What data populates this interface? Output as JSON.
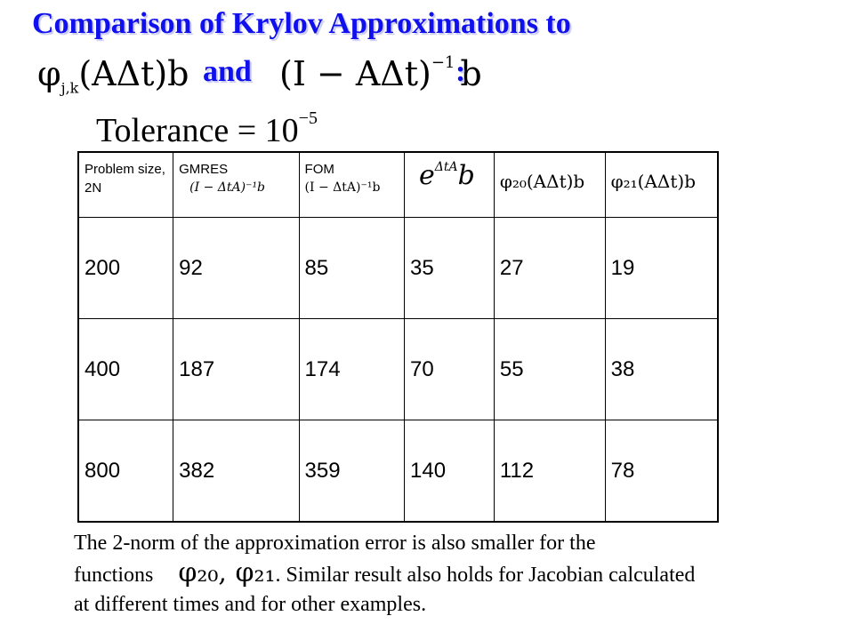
{
  "title": {
    "line1": "Comparison of Krylov Approximations to",
    "line2_phi": "φ",
    "line2_phi_sub": "j,k",
    "line2_phi_arg": "(AΔt)b",
    "line2_and": "and",
    "line2_inv": "(I − AΔt)",
    "line2_inv_sup": "−1",
    "line2_inv_b": "b",
    "line2_colon": ":"
  },
  "tolerance": {
    "label": "Tolerance = 10",
    "exponent": "−5"
  },
  "table": {
    "headers": [
      {
        "label": "Problem size, 2N",
        "formula": ""
      },
      {
        "label": "GMRES",
        "formula": "(I − ΔtA)⁻¹b"
      },
      {
        "label": "FOM",
        "formula": "(I − ΔtA)⁻¹b"
      },
      {
        "label": "",
        "formula": "e",
        "formula_sup": "ΔtA",
        "formula_tail": "b"
      },
      {
        "label": "",
        "formula": "φ₂₀(AΔt)b"
      },
      {
        "label": "",
        "formula": "φ₂₁(AΔt)b"
      }
    ],
    "rows": [
      [
        "200",
        "92",
        "85",
        "35",
        "27",
        "19"
      ],
      [
        "400",
        "187",
        "174",
        "70",
        "55",
        "38"
      ],
      [
        "800",
        "382",
        "359",
        "140",
        "112",
        "78"
      ]
    ]
  },
  "note": {
    "line1": "The 2-norm of the approximation error is also smaller for the",
    "line2_a": "functions",
    "line2_phis": "φ₂₀, φ₂₁",
    "line2_b": ".    Similar result also holds for Jacobian calculated",
    "line3": "at different times and for other examples."
  }
}
